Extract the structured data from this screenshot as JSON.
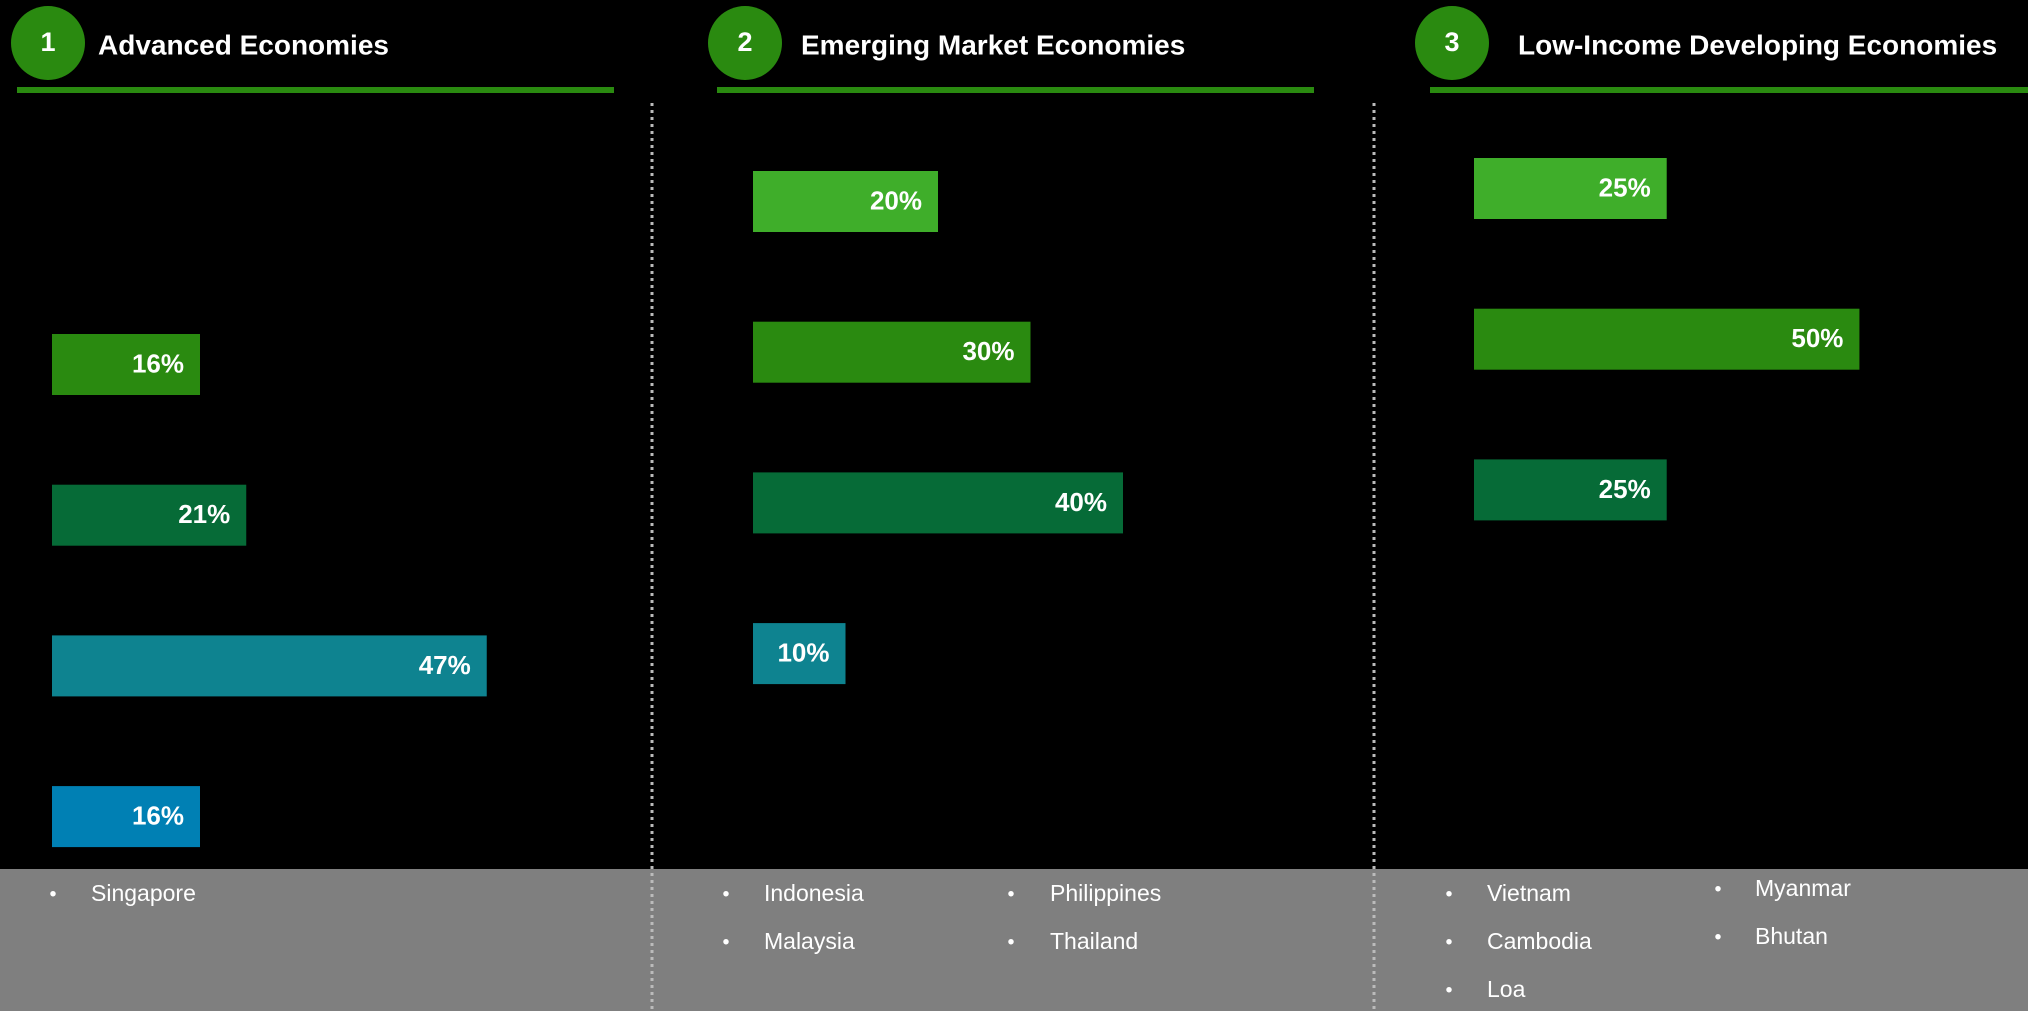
{
  "chart_data": [
    {
      "type": "bar",
      "number": 1,
      "title": "Advanced Economies",
      "categories": [
        null,
        null,
        null,
        null
      ],
      "values": [
        16,
        21,
        47,
        16
      ],
      "value_labels": [
        "16%",
        "21%",
        "47%",
        "16%"
      ],
      "colors": [
        "#2a8a10",
        "#066b37",
        "#0e8390",
        "#0080b4"
      ],
      "xlim": [
        0,
        60
      ],
      "countries": [
        [
          "Singapore"
        ]
      ]
    },
    {
      "type": "bar",
      "number": 2,
      "title": "Emerging Market Economies",
      "categories": [
        null,
        null,
        null,
        null
      ],
      "values": [
        20,
        30,
        40,
        10
      ],
      "value_labels": [
        "20%",
        "30%",
        "40%",
        "10%"
      ],
      "colors": [
        "#3fae2a",
        "#2a8a10",
        "#066b37",
        "#0e8390"
      ],
      "xlim": [
        0,
        60
      ],
      "countries": [
        [
          "Indonesia",
          "Malaysia"
        ],
        [
          "Philippines",
          "Thailand"
        ]
      ]
    },
    {
      "type": "bar",
      "number": 3,
      "title": "Low-Income Developing Economies",
      "categories": [
        null,
        null,
        null
      ],
      "values": [
        25,
        50,
        25
      ],
      "value_labels": [
        "25%",
        "50%",
        "25%"
      ],
      "colors": [
        "#3fae2a",
        "#2a8a10",
        "#066b37"
      ],
      "xlim": [
        0,
        72
      ],
      "countries": [
        [
          "Vietnam",
          "Cambodia",
          "Loa"
        ],
        [
          "Myanmar",
          "Bhutan"
        ]
      ]
    }
  ]
}
